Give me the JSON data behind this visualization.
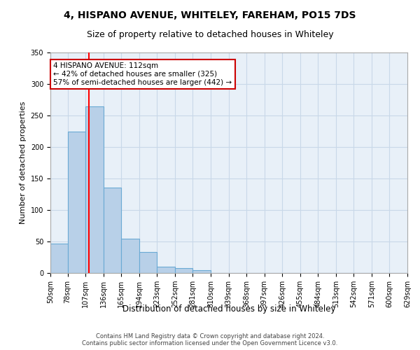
{
  "title": "4, HISPANO AVENUE, WHITELEY, FAREHAM, PO15 7DS",
  "subtitle": "Size of property relative to detached houses in Whiteley",
  "xlabel": "Distribution of detached houses by size in Whiteley",
  "ylabel": "Number of detached properties",
  "bin_labels": [
    "50sqm",
    "78sqm",
    "107sqm",
    "136sqm",
    "165sqm",
    "194sqm",
    "223sqm",
    "252sqm",
    "281sqm",
    "310sqm",
    "339sqm",
    "368sqm",
    "397sqm",
    "426sqm",
    "455sqm",
    "484sqm",
    "513sqm",
    "542sqm",
    "571sqm",
    "600sqm",
    "629sqm"
  ],
  "bar_values": [
    47,
    224,
    265,
    136,
    55,
    33,
    10,
    8,
    5,
    0,
    0,
    0,
    0,
    0,
    0,
    0,
    0,
    0,
    0,
    0
  ],
  "bar_color": "#b8d0e8",
  "bar_edge_color": "#6aaad4",
  "bar_linewidth": 0.8,
  "grid_color": "#c8d8e8",
  "background_color": "#e8f0f8",
  "red_line_x": 112,
  "bin_edges": [
    50,
    78,
    107,
    136,
    165,
    194,
    223,
    252,
    281,
    310,
    339,
    368,
    397,
    426,
    455,
    484,
    513,
    542,
    571,
    600,
    629
  ],
  "annotation_text": "4 HISPANO AVENUE: 112sqm\n← 42% of detached houses are smaller (325)\n57% of semi-detached houses are larger (442) →",
  "annotation_box_color": "#ffffff",
  "annotation_box_edge_color": "#cc0000",
  "ylim": [
    0,
    350
  ],
  "yticks": [
    0,
    50,
    100,
    150,
    200,
    250,
    300,
    350
  ],
  "footer_text": "Contains HM Land Registry data © Crown copyright and database right 2024.\nContains public sector information licensed under the Open Government Licence v3.0.",
  "title_fontsize": 10,
  "subtitle_fontsize": 9,
  "tick_fontsize": 7,
  "ylabel_fontsize": 8,
  "xlabel_fontsize": 8.5,
  "annotation_fontsize": 7.5,
  "footer_fontsize": 6
}
